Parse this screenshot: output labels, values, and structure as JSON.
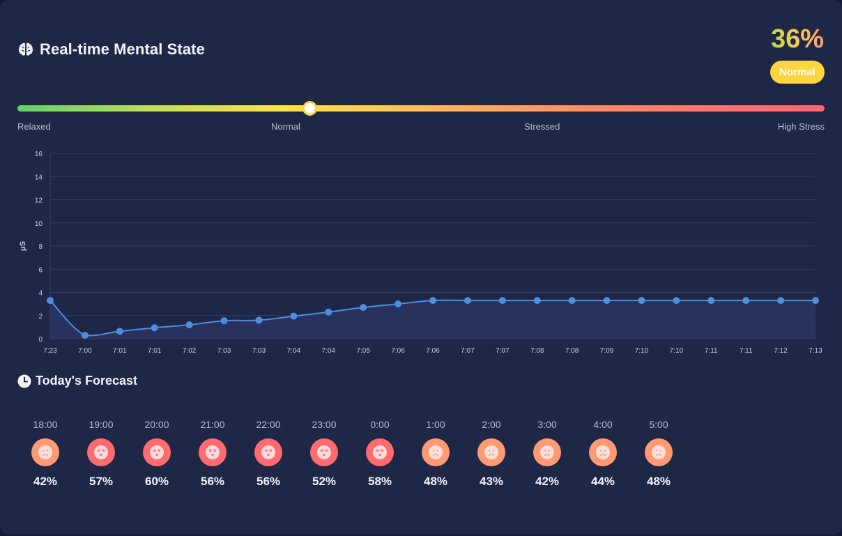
{
  "header": {
    "icon": "brain-icon",
    "title": "Real-time Mental State"
  },
  "score": {
    "value": "36%",
    "status": "Normal",
    "gauge_level": 0.36
  },
  "gauge": {
    "labels": [
      "Relaxed",
      "Normal",
      "Stressed",
      "High Stress"
    ]
  },
  "colors": {
    "card_bg": "#1f2747",
    "line": "#4a90e2",
    "badge": "#fcd541",
    "face_stressed": "#ff6b6e",
    "face_mild": "#ff9a73"
  },
  "chart_data": {
    "type": "area",
    "ylabel": "μS",
    "ylim": [
      0,
      16
    ],
    "yticks": [
      0,
      2,
      4,
      6,
      8,
      10,
      12,
      14,
      16
    ],
    "x": [
      "7:23",
      "7:00",
      "7:01",
      "7:01",
      "7:02",
      "7:03",
      "7:03",
      "7:04",
      "7:04",
      "7:05",
      "7:06",
      "7:06",
      "7:07",
      "7:07",
      "7:08",
      "7:08",
      "7:09",
      "7:10",
      "7:10",
      "7:11",
      "7:11",
      "7:12",
      "7:13"
    ],
    "values": [
      3.3,
      0.3,
      0.65,
      0.95,
      1.2,
      1.55,
      1.6,
      1.95,
      2.3,
      2.7,
      3.0,
      3.3,
      3.3,
      3.3,
      3.3,
      3.3,
      3.3,
      3.3,
      3.3,
      3.3,
      3.3,
      3.3,
      3.3
    ],
    "grid": true
  },
  "forecast": {
    "title": "Today's Forecast",
    "icon": "clock-icon",
    "items": [
      {
        "time": "18:00",
        "pct": "42%",
        "mood": "sad"
      },
      {
        "time": "19:00",
        "pct": "57%",
        "mood": "dizzy"
      },
      {
        "time": "20:00",
        "pct": "60%",
        "mood": "dizzy"
      },
      {
        "time": "21:00",
        "pct": "56%",
        "mood": "dizzy"
      },
      {
        "time": "22:00",
        "pct": "56%",
        "mood": "dizzy"
      },
      {
        "time": "23:00",
        "pct": "52%",
        "mood": "dizzy"
      },
      {
        "time": "0:00",
        "pct": "58%",
        "mood": "dizzy"
      },
      {
        "time": "1:00",
        "pct": "48%",
        "mood": "sad"
      },
      {
        "time": "2:00",
        "pct": "43%",
        "mood": "sad"
      },
      {
        "time": "3:00",
        "pct": "42%",
        "mood": "sad"
      },
      {
        "time": "4:00",
        "pct": "44%",
        "mood": "sad"
      },
      {
        "time": "5:00",
        "pct": "48%",
        "mood": "sad"
      }
    ]
  }
}
